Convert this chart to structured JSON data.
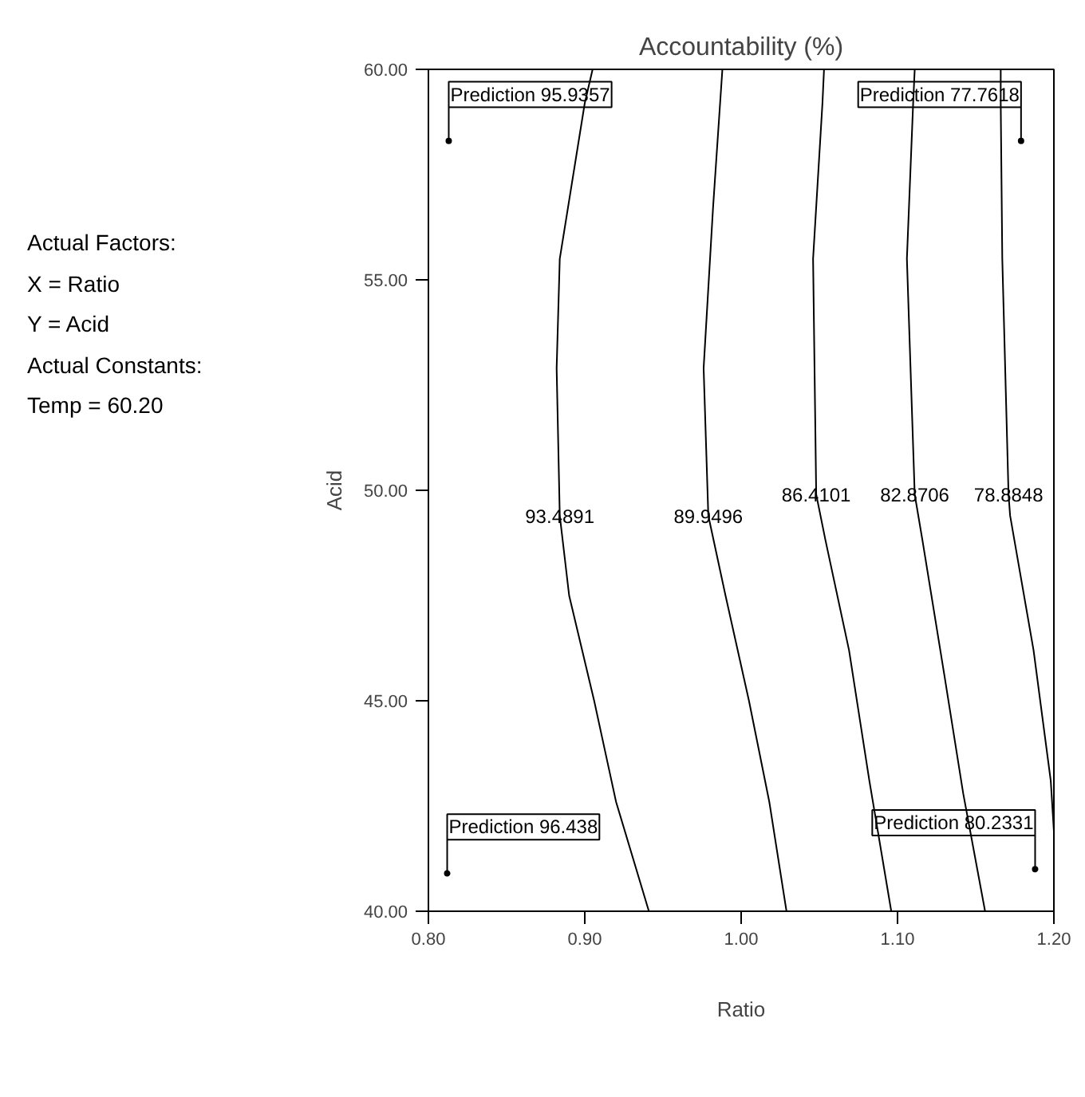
{
  "chart_data": {
    "type": "line",
    "title": "Accountability (%)",
    "xlabel": "Ratio",
    "ylabel": "Acid",
    "xlim": [
      0.8,
      1.2
    ],
    "ylim": [
      40,
      60
    ],
    "xticks": [
      {
        "value": 0.8,
        "label": "0.80"
      },
      {
        "value": 0.9,
        "label": "0.90"
      },
      {
        "value": 1.0,
        "label": "1.00"
      },
      {
        "value": 1.1,
        "label": "1.10"
      },
      {
        "value": 1.2,
        "label": "1.20"
      }
    ],
    "yticks": [
      {
        "value": 40,
        "label": "40.00"
      },
      {
        "value": 45,
        "label": "45.00"
      },
      {
        "value": 50,
        "label": "50.00"
      },
      {
        "value": 55,
        "label": "55.00"
      },
      {
        "value": 60,
        "label": "60.00"
      }
    ],
    "grid": false,
    "marker": "none",
    "line_style": "solid",
    "series": [
      {
        "name": "93.4891",
        "color": "#000000",
        "x": [
          0.905,
          0.9,
          0.884,
          0.882,
          0.884,
          0.89,
          0.906,
          0.92,
          0.941
        ],
        "values": [
          60,
          59.2,
          55.5,
          52.9,
          49.4,
          47.5,
          45,
          42.6,
          40
        ]
      },
      {
        "name": "89.9496",
        "color": "#000000",
        "x": [
          0.988,
          0.982,
          0.976,
          0.979,
          0.99,
          1.005,
          1.018,
          1.029
        ],
        "values": [
          60,
          56.7,
          52.9,
          49.4,
          47.5,
          45,
          42.6,
          40
        ]
      },
      {
        "name": "86.4101",
        "color": "#000000",
        "x": [
          1.053,
          1.052,
          1.046,
          1.048,
          1.054,
          1.069,
          1.082,
          1.096
        ],
        "values": [
          60,
          59.2,
          55.5,
          49.9,
          48.8,
          46.2,
          43.1,
          40
        ]
      },
      {
        "name": "82.8706",
        "color": "#000000",
        "x": [
          1.111,
          1.11,
          1.106,
          1.111,
          1.116,
          1.13,
          1.142,
          1.156
        ],
        "values": [
          60,
          59.2,
          55.5,
          49.9,
          48.8,
          45.6,
          42.8,
          40
        ]
      },
      {
        "name": "78.8848",
        "color": "#000000",
        "x": [
          1.166,
          1.166,
          1.167,
          1.171,
          1.172,
          1.187,
          1.198,
          1.2
        ],
        "values": [
          60,
          59.2,
          55.5,
          49.9,
          49.4,
          46.2,
          43.1,
          41.9
        ]
      }
    ],
    "annotations": [
      "Actual Factors:",
      "X = Ratio",
      "Y = Acid",
      "Actual Constants:",
      "Temp = 60.20",
      {
        "text": "Prediction 95.9357",
        "x": 0.813,
        "y": 58.3
      },
      {
        "text": "Prediction 77.7618",
        "x": 1.179,
        "y": 58.3
      },
      {
        "text": "Prediction 96.438",
        "x": 0.812,
        "y": 40.9
      },
      {
        "text": "Prediction 80.2331",
        "x": 1.188,
        "y": 41.0
      }
    ]
  }
}
